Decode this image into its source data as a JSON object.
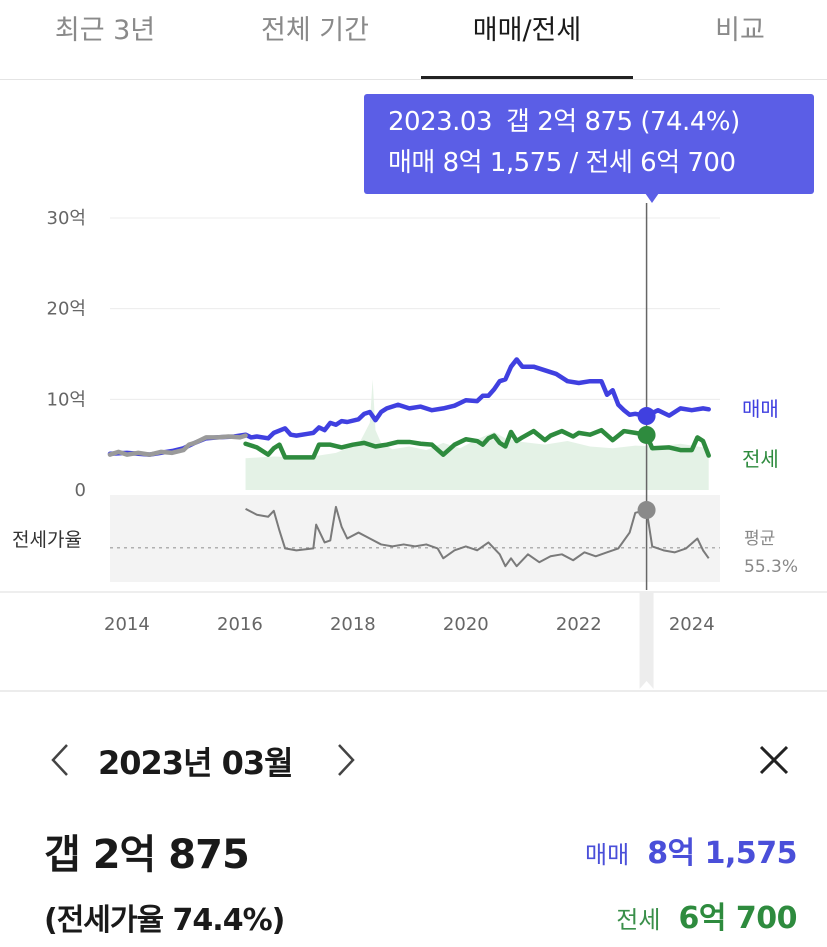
{
  "colors": {
    "sale": "#4040e0",
    "jeonse": "#2e8b3e",
    "before_data": "#9a9a9a",
    "ratio": "#7a7a7a",
    "tooltip_bg": "#5b5ee6",
    "accent_blue_text": "#4a4fd9"
  },
  "tabs": [
    {
      "label": "최근 3년",
      "active": false
    },
    {
      "label": "전체 기간",
      "active": false
    },
    {
      "label": "매매/전세",
      "active": true
    },
    {
      "label": "비교",
      "active": false
    }
  ],
  "tooltip": {
    "date": "2023.03",
    "gap": "갭 2억 875 (74.4%)",
    "prices": "매매 8억 1,575 / 전세 6억 700"
  },
  "panel": {
    "period": "2023년 03월",
    "gap_title": "갭 2억 875",
    "gap_ratio": "(전세가율 74.4%)",
    "sale_label": "매매",
    "sale_value": "8억 1,575",
    "jeonse_label": "전세",
    "jeonse_value": "6억 700"
  },
  "icons": {
    "prev": "chevron-left-icon",
    "next": "chevron-right-icon",
    "close": "close-icon"
  },
  "chart_data": {
    "type": "line",
    "y_ticks": [
      {
        "value": 30,
        "label": "30억"
      },
      {
        "value": 20,
        "label": "20억"
      },
      {
        "value": 10,
        "label": "10억"
      },
      {
        "value": 0,
        "label": "0"
      }
    ],
    "ylim": [
      0,
      30
    ],
    "xlim": [
      2013.7,
      2024.5
    ],
    "x_ticks": [
      "2014",
      "2016",
      "2018",
      "2020",
      "2022",
      "2024"
    ],
    "ratio_label": "전세가율",
    "average_label": "평균",
    "average_value": "55.3%",
    "average_ratio": 55.3,
    "ratio_lim": [
      38,
      82
    ],
    "selected": {
      "x": 2023.2,
      "sale": 8.16,
      "jeonse": 6.07,
      "ratio": 74.4
    },
    "series": [
      {
        "name": "매매",
        "key": "sale",
        "points": [
          [
            2013.7,
            4.0
          ],
          [
            2014.0,
            4.1
          ],
          [
            2014.4,
            3.9
          ],
          [
            2014.8,
            4.3
          ],
          [
            2015.0,
            4.6
          ],
          [
            2015.2,
            5.2
          ],
          [
            2015.4,
            5.7
          ],
          [
            2015.6,
            5.8
          ],
          [
            2015.9,
            5.9
          ],
          [
            2016.1,
            6.1
          ],
          [
            2016.2,
            5.8
          ],
          [
            2016.3,
            5.9
          ],
          [
            2016.5,
            5.7
          ],
          [
            2016.6,
            6.3
          ],
          [
            2016.8,
            6.8
          ],
          [
            2016.9,
            6.1
          ],
          [
            2017.0,
            6.0
          ],
          [
            2017.2,
            6.2
          ],
          [
            2017.3,
            6.3
          ],
          [
            2017.4,
            6.9
          ],
          [
            2017.5,
            6.6
          ],
          [
            2017.6,
            7.4
          ],
          [
            2017.7,
            7.2
          ],
          [
            2017.8,
            7.6
          ],
          [
            2017.9,
            7.5
          ],
          [
            2018.1,
            7.8
          ],
          [
            2018.2,
            8.4
          ],
          [
            2018.3,
            8.6
          ],
          [
            2018.4,
            7.7
          ],
          [
            2018.5,
            8.6
          ],
          [
            2018.6,
            9.0
          ],
          [
            2018.8,
            9.4
          ],
          [
            2019.0,
            9.0
          ],
          [
            2019.2,
            9.2
          ],
          [
            2019.4,
            8.8
          ],
          [
            2019.6,
            9.0
          ],
          [
            2019.8,
            9.3
          ],
          [
            2020.0,
            9.9
          ],
          [
            2020.2,
            9.8
          ],
          [
            2020.3,
            10.4
          ],
          [
            2020.4,
            10.4
          ],
          [
            2020.5,
            11.1
          ],
          [
            2020.6,
            12.0
          ],
          [
            2020.7,
            12.2
          ],
          [
            2020.8,
            13.6
          ],
          [
            2020.9,
            14.4
          ],
          [
            2021.0,
            13.6
          ],
          [
            2021.2,
            13.6
          ],
          [
            2021.4,
            13.2
          ],
          [
            2021.6,
            12.8
          ],
          [
            2021.8,
            12.0
          ],
          [
            2022.0,
            11.8
          ],
          [
            2022.2,
            12.0
          ],
          [
            2022.4,
            12.0
          ],
          [
            2022.5,
            10.5
          ],
          [
            2022.6,
            11.0
          ],
          [
            2022.7,
            9.4
          ],
          [
            2022.8,
            8.8
          ],
          [
            2022.9,
            8.3
          ],
          [
            2023.0,
            8.4
          ],
          [
            2023.2,
            8.16
          ],
          [
            2023.4,
            8.8
          ],
          [
            2023.6,
            8.2
          ],
          [
            2023.8,
            9.0
          ],
          [
            2024.0,
            8.8
          ],
          [
            2024.2,
            9.0
          ],
          [
            2024.3,
            8.9
          ]
        ]
      },
      {
        "name": "전세",
        "key": "jeonse",
        "points": [
          [
            2016.1,
            5.1
          ],
          [
            2016.3,
            4.7
          ],
          [
            2016.5,
            3.9
          ],
          [
            2016.6,
            4.6
          ],
          [
            2016.7,
            5.0
          ],
          [
            2016.8,
            3.6
          ],
          [
            2017.0,
            3.6
          ],
          [
            2017.3,
            3.6
          ],
          [
            2017.4,
            5.0
          ],
          [
            2017.6,
            5.0
          ],
          [
            2017.8,
            4.7
          ],
          [
            2018.0,
            5.0
          ],
          [
            2018.2,
            5.2
          ],
          [
            2018.4,
            4.8
          ],
          [
            2018.6,
            5.0
          ],
          [
            2018.8,
            5.3
          ],
          [
            2019.0,
            5.3
          ],
          [
            2019.2,
            5.1
          ],
          [
            2019.4,
            5.0
          ],
          [
            2019.6,
            3.9
          ],
          [
            2019.8,
            5.0
          ],
          [
            2020.0,
            5.6
          ],
          [
            2020.2,
            5.4
          ],
          [
            2020.3,
            5.0
          ],
          [
            2020.4,
            5.7
          ],
          [
            2020.5,
            6.0
          ],
          [
            2020.6,
            5.2
          ],
          [
            2020.7,
            4.8
          ],
          [
            2020.8,
            6.4
          ],
          [
            2020.9,
            5.4
          ],
          [
            2021.0,
            5.8
          ],
          [
            2021.2,
            6.5
          ],
          [
            2021.4,
            5.5
          ],
          [
            2021.5,
            6.0
          ],
          [
            2021.7,
            6.5
          ],
          [
            2021.9,
            5.9
          ],
          [
            2022.0,
            6.3
          ],
          [
            2022.2,
            6.1
          ],
          [
            2022.4,
            6.6
          ],
          [
            2022.6,
            5.5
          ],
          [
            2022.7,
            6.0
          ],
          [
            2022.8,
            6.5
          ],
          [
            2023.0,
            6.3
          ],
          [
            2023.2,
            6.07
          ],
          [
            2023.3,
            4.6
          ],
          [
            2023.6,
            4.7
          ],
          [
            2023.8,
            4.4
          ],
          [
            2024.0,
            4.4
          ],
          [
            2024.1,
            5.8
          ],
          [
            2024.2,
            5.4
          ],
          [
            2024.3,
            3.8
          ]
        ]
      },
      {
        "name": "",
        "key": "before_data",
        "points": [
          [
            2013.7,
            3.9
          ],
          [
            2013.85,
            4.2
          ],
          [
            2014.0,
            3.9
          ],
          [
            2014.2,
            4.1
          ],
          [
            2014.4,
            3.9
          ],
          [
            2014.6,
            4.2
          ],
          [
            2014.8,
            4.1
          ],
          [
            2015.0,
            4.4
          ],
          [
            2015.1,
            5.0
          ],
          [
            2015.2,
            5.2
          ],
          [
            2015.4,
            5.8
          ],
          [
            2015.6,
            5.8
          ],
          [
            2015.8,
            5.9
          ],
          [
            2016.0,
            5.8
          ],
          [
            2016.1,
            6.0
          ]
        ]
      }
    ],
    "volume_area": [
      [
        2016.1,
        0.3
      ],
      [
        2016.6,
        0.5
      ],
      [
        2017.0,
        0.4
      ],
      [
        2017.4,
        0.6
      ],
      [
        2017.7,
        0.9
      ],
      [
        2017.9,
        1.4
      ],
      [
        2018.1,
        1.8
      ],
      [
        2018.3,
        4.2
      ],
      [
        2018.35,
        9.0
      ],
      [
        2018.4,
        3.4
      ],
      [
        2018.5,
        2.0
      ],
      [
        2018.7,
        1.3
      ],
      [
        2019.0,
        1.6
      ],
      [
        2019.3,
        1.2
      ],
      [
        2019.6,
        2.0
      ],
      [
        2019.9,
        1.4
      ],
      [
        2020.2,
        2.4
      ],
      [
        2020.5,
        3.2
      ],
      [
        2020.7,
        2.5
      ],
      [
        2021.0,
        2.1
      ],
      [
        2021.4,
        1.8
      ],
      [
        2021.8,
        2.2
      ],
      [
        2022.2,
        1.6
      ],
      [
        2022.6,
        1.4
      ],
      [
        2023.0,
        1.7
      ],
      [
        2023.4,
        1.6
      ],
      [
        2023.8,
        1.9
      ],
      [
        2024.3,
        1.4
      ]
    ],
    "ratio_points": [
      [
        2016.1,
        75
      ],
      [
        2016.3,
        72
      ],
      [
        2016.5,
        71
      ],
      [
        2016.6,
        74
      ],
      [
        2016.7,
        64
      ],
      [
        2016.8,
        55
      ],
      [
        2017.0,
        54
      ],
      [
        2017.3,
        55
      ],
      [
        2017.35,
        67
      ],
      [
        2017.5,
        58
      ],
      [
        2017.6,
        59
      ],
      [
        2017.7,
        76
      ],
      [
        2017.8,
        66
      ],
      [
        2017.9,
        60
      ],
      [
        2018.1,
        63
      ],
      [
        2018.3,
        60
      ],
      [
        2018.5,
        57
      ],
      [
        2018.7,
        56
      ],
      [
        2018.9,
        57
      ],
      [
        2019.1,
        56
      ],
      [
        2019.3,
        57
      ],
      [
        2019.5,
        55
      ],
      [
        2019.6,
        50
      ],
      [
        2019.8,
        54
      ],
      [
        2020.0,
        56
      ],
      [
        2020.2,
        54
      ],
      [
        2020.4,
        58
      ],
      [
        2020.6,
        52
      ],
      [
        2020.7,
        46
      ],
      [
        2020.8,
        50
      ],
      [
        2020.9,
        46
      ],
      [
        2021.1,
        52
      ],
      [
        2021.3,
        48
      ],
      [
        2021.5,
        51
      ],
      [
        2021.7,
        52
      ],
      [
        2021.9,
        49
      ],
      [
        2022.1,
        53
      ],
      [
        2022.3,
        51
      ],
      [
        2022.5,
        53
      ],
      [
        2022.7,
        55
      ],
      [
        2022.9,
        63
      ],
      [
        2023.0,
        73
      ],
      [
        2023.2,
        74.4
      ],
      [
        2023.3,
        56
      ],
      [
        2023.5,
        54
      ],
      [
        2023.7,
        53
      ],
      [
        2023.9,
        55
      ],
      [
        2024.1,
        60
      ],
      [
        2024.2,
        54
      ],
      [
        2024.3,
        50
      ]
    ],
    "legend": {
      "sale_label": "매매",
      "jeonse_label": "전세"
    }
  }
}
